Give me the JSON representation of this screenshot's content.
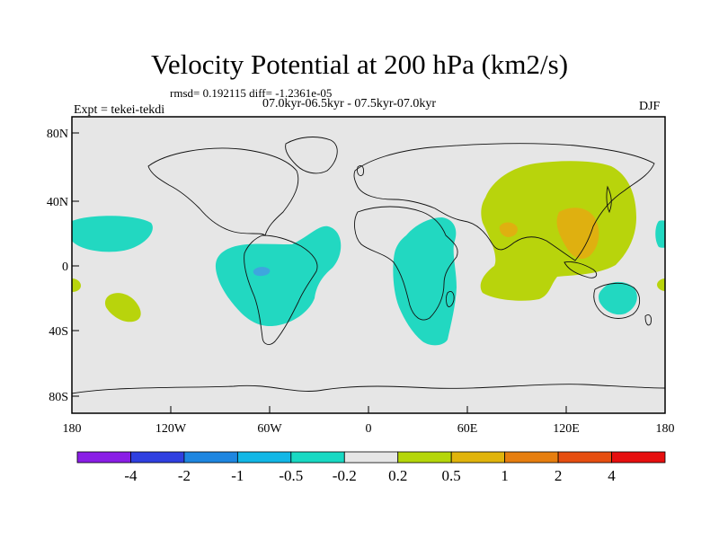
{
  "title": "Velocity Potential at 200 hPa (km2/s)",
  "stats": "rmsd= 0.192115 diff= -1.2361e-05",
  "period": "07.0kyr-06.5kyr - 07.5kyr-07.0kyr",
  "experiment": "Expt = tekei-tekdi",
  "season": "DJF",
  "axes": {
    "lat_labels": [
      "80N",
      "40N",
      "0",
      "40S",
      "80S"
    ],
    "lon_labels": [
      "180",
      "120W",
      "60W",
      "0",
      "60E",
      "120E",
      "180"
    ]
  },
  "colorbar": {
    "labels": [
      "-4",
      "-2",
      "-1",
      "-0.5",
      "-0.2",
      "0.2",
      "0.5",
      "1",
      "2",
      "4"
    ],
    "colors": [
      "#8a1ee6",
      "#2f3fe0",
      "#1e86e0",
      "#12b7e6",
      "#18d9c3",
      "#e6e6e6",
      "#b5d60a",
      "#e0b40c",
      "#e67e0f",
      "#e64e10",
      "#e60f0f"
    ]
  },
  "colors": {
    "background": "#e6e6e6",
    "negative_field": "#22d8c1",
    "negative_core": "#3ea6de",
    "positive_field": "#b8d40c",
    "positive_core": "#dfb010"
  }
}
